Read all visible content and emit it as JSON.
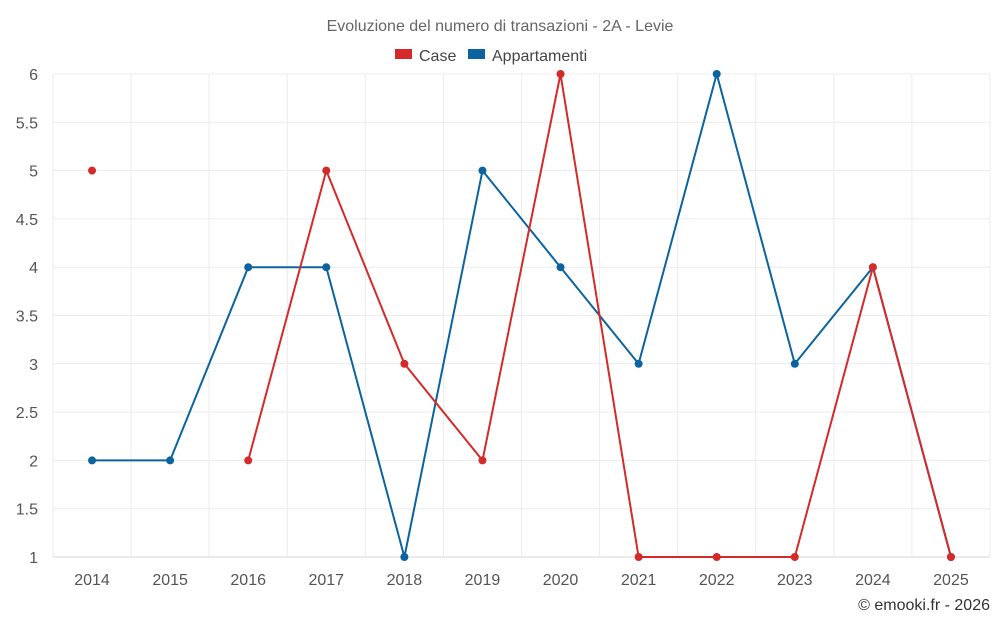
{
  "chart_data": {
    "type": "line",
    "title": "Evoluzione del numero di transazioni - 2A - Levie",
    "x": [
      "2014",
      "2015",
      "2016",
      "2017",
      "2018",
      "2019",
      "2020",
      "2021",
      "2022",
      "2023",
      "2024",
      "2025"
    ],
    "ylim": [
      1,
      6
    ],
    "yticks": [
      "1",
      "1.5",
      "2",
      "2.5",
      "3",
      "3.5",
      "4",
      "4.5",
      "5",
      "5.5",
      "6"
    ],
    "grid": true,
    "legend_position": "top-center",
    "series": [
      {
        "name": "Case",
        "color": "#d42a2a",
        "values": [
          5,
          null,
          2,
          5,
          3,
          2,
          6,
          1,
          1,
          1,
          4,
          1
        ]
      },
      {
        "name": "Appartamenti",
        "color": "#0b63a0",
        "values": [
          2,
          2,
          4,
          4,
          1,
          5,
          4,
          3,
          6,
          3,
          4,
          1
        ]
      }
    ]
  },
  "credit": "© emooki.fr - 2026"
}
